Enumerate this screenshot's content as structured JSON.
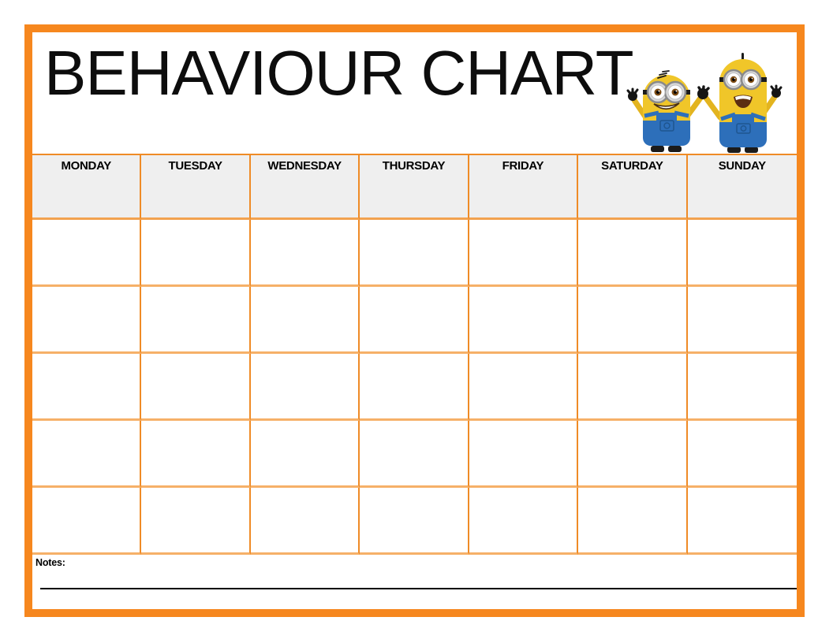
{
  "title": "BEHAVIOUR CHART",
  "illustration": {
    "name": "minions-illustration"
  },
  "table": {
    "days": [
      "MONDAY",
      "TUESDAY",
      "WEDNESDAY",
      "THURSDAY",
      "FRIDAY",
      "SATURDAY",
      "SUNDAY"
    ],
    "body_rows": 5
  },
  "notes": {
    "label": "Notes:"
  },
  "colors": {
    "frame_orange": "#F6871E",
    "grid_vertical_orange": "#EF8B26",
    "grid_horizontal_orange": "#F6B068",
    "header_background": "#EFEFEF",
    "text": "#000000",
    "minion_yellow": "#F0C629",
    "minion_overalls_blue": "#2D6FBA"
  }
}
